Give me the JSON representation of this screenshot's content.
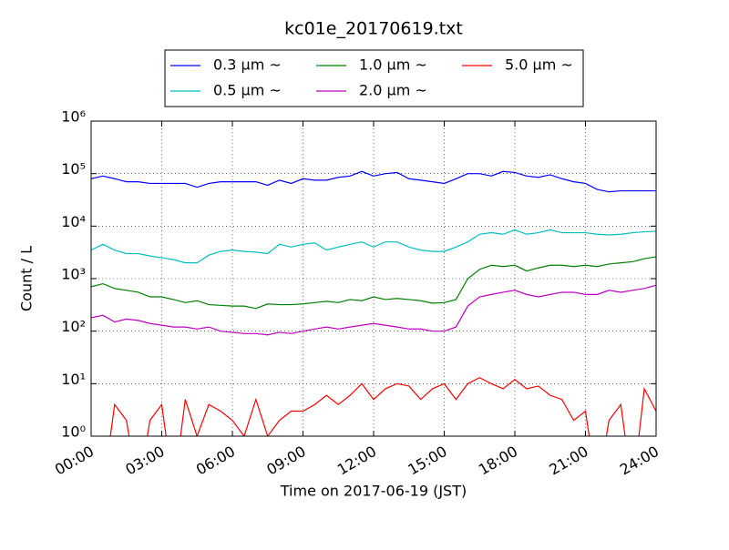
{
  "chart_data": {
    "type": "line",
    "title": "kc01e_20170619.txt",
    "xlabel": "Time on 2017-06-19 (JST)",
    "ylabel": "Count / L",
    "yscale": "log",
    "grid": true,
    "legend": "top",
    "x": [
      0,
      0.5,
      1,
      1.5,
      2,
      2.5,
      3,
      3.5,
      4,
      4.5,
      5,
      5.5,
      6,
      6.5,
      7,
      7.5,
      8,
      8.5,
      9,
      9.5,
      10,
      10.5,
      11,
      11.5,
      12,
      12.5,
      13,
      13.5,
      14,
      14.5,
      15,
      15.5,
      16,
      16.5,
      17,
      17.5,
      18,
      18.5,
      19,
      19.5,
      20,
      20.5,
      21,
      21.5,
      22,
      22.5,
      23,
      23.5,
      24
    ],
    "xlim": [
      0,
      24
    ],
    "xticks": [
      {
        "value": 0,
        "label": "00:00"
      },
      {
        "value": 3,
        "label": "03:00"
      },
      {
        "value": 6,
        "label": "06:00"
      },
      {
        "value": 9,
        "label": "09:00"
      },
      {
        "value": 12,
        "label": "12:00"
      },
      {
        "value": 15,
        "label": "15:00"
      },
      {
        "value": 18,
        "label": "18:00"
      },
      {
        "value": 21,
        "label": "21:00"
      },
      {
        "value": 24,
        "label": "24:00"
      }
    ],
    "ylim": [
      1,
      1000000
    ],
    "yticks": [
      {
        "value": 1,
        "label": "10⁰"
      },
      {
        "value": 10,
        "label": "10¹"
      },
      {
        "value": 100,
        "label": "10²"
      },
      {
        "value": 1000,
        "label": "10³"
      },
      {
        "value": 10000,
        "label": "10⁴"
      },
      {
        "value": 100000,
        "label": "10⁵"
      },
      {
        "value": 1000000,
        "label": "10⁶"
      }
    ],
    "series": [
      {
        "name": "0.3 μm ~",
        "color": "#0000ff",
        "values": [
          80000,
          90000,
          80000,
          70000,
          70000,
          65000,
          65000,
          65000,
          65000,
          55000,
          65000,
          70000,
          70000,
          70000,
          70000,
          60000,
          75000,
          65000,
          80000,
          75000,
          75000,
          85000,
          90000,
          110000,
          90000,
          100000,
          105000,
          80000,
          75000,
          70000,
          65000,
          80000,
          100000,
          100000,
          90000,
          110000,
          105000,
          90000,
          85000,
          95000,
          80000,
          70000,
          65000,
          50000,
          45000,
          47000,
          47000,
          47000,
          47000
        ]
      },
      {
        "name": "0.5 μm ~",
        "color": "#00bfbf",
        "values": [
          3500,
          4500,
          3500,
          3000,
          3000,
          2700,
          2500,
          2300,
          2000,
          2000,
          2800,
          3300,
          3500,
          3300,
          3200,
          3000,
          4500,
          4000,
          4500,
          4800,
          3500,
          4000,
          4500,
          5000,
          4000,
          5000,
          5000,
          4000,
          3500,
          3300,
          3300,
          4000,
          5000,
          7000,
          7500,
          7000,
          8500,
          7000,
          7500,
          8500,
          7500,
          7500,
          7500,
          7000,
          6800,
          7000,
          7500,
          7800,
          8000
        ]
      },
      {
        "name": "1.0 μm ~",
        "color": "#008000",
        "values": [
          700,
          800,
          650,
          600,
          550,
          450,
          450,
          400,
          350,
          380,
          320,
          310,
          300,
          300,
          270,
          330,
          320,
          320,
          330,
          350,
          370,
          350,
          400,
          380,
          450,
          400,
          420,
          400,
          380,
          340,
          350,
          400,
          1000,
          1500,
          1800,
          1700,
          1800,
          1400,
          1600,
          1800,
          1800,
          1700,
          1800,
          1700,
          1900,
          2000,
          2100,
          2400,
          2600
        ]
      },
      {
        "name": "2.0 μm ~",
        "color": "#bf00bf",
        "values": [
          180,
          200,
          150,
          170,
          160,
          140,
          130,
          120,
          120,
          110,
          120,
          100,
          95,
          90,
          90,
          85,
          95,
          90,
          100,
          110,
          120,
          110,
          120,
          130,
          140,
          130,
          120,
          110,
          110,
          100,
          100,
          120,
          300,
          450,
          500,
          550,
          600,
          500,
          450,
          500,
          550,
          550,
          500,
          500,
          600,
          550,
          600,
          650,
          750
        ]
      },
      {
        "name": "5.0 μm ~",
        "color": "#ff0000",
        "values": [
          1,
          0,
          4,
          2,
          0,
          2,
          4,
          0,
          5,
          1,
          4,
          3,
          2,
          1,
          5,
          1,
          2,
          3,
          3,
          4,
          6,
          4,
          6,
          10,
          5,
          8,
          10,
          9,
          5,
          8,
          10,
          5,
          10,
          13,
          10,
          8,
          12,
          8,
          9,
          6,
          5,
          2,
          3,
          0,
          2,
          4,
          0,
          8,
          3
        ]
      }
    ]
  }
}
